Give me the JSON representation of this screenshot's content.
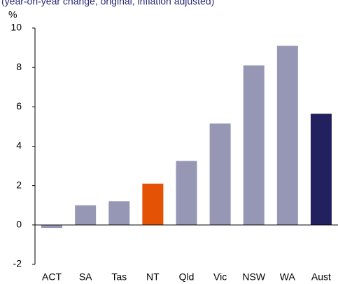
{
  "chart_data": {
    "type": "bar",
    "subtitle": "(year-on-year change, original, inflation adjusted)",
    "y_label": "%",
    "categories": [
      "ACT",
      "SA",
      "Tas",
      "NT",
      "Qld",
      "Vic",
      "NSW",
      "WA",
      "Aust"
    ],
    "values": [
      -0.15,
      1.0,
      1.2,
      2.1,
      3.25,
      5.15,
      8.1,
      9.1,
      5.65
    ],
    "colors": [
      "#9597b5",
      "#9597b5",
      "#9597b5",
      "#e35205",
      "#9597b5",
      "#9597b5",
      "#9597b5",
      "#9597b5",
      "#22205f"
    ],
    "ylim": [
      -2,
      10
    ],
    "yticks": [
      -2,
      0,
      2,
      4,
      6,
      8,
      10
    ],
    "grid": false
  }
}
